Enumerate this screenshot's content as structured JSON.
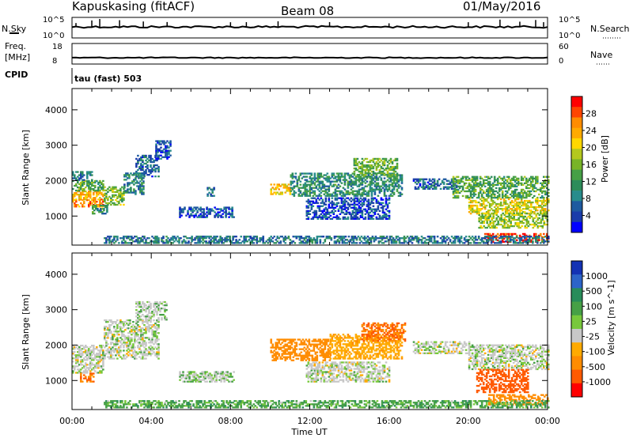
{
  "header": {
    "station": "Kapuskasing (fitACF)",
    "beam": "Beam 08",
    "date": "01/May/2016"
  },
  "strip_nsky": {
    "left_label": "N.Sky",
    "left_ticks": [
      "10^5",
      "10^0"
    ],
    "right_label": "N.Search",
    "right_ticks": [
      "10^5",
      "10^0"
    ]
  },
  "strip_freq": {
    "left_label_top": "Freq.",
    "left_label_unit": "[MHz]",
    "left_ticks": [
      "18",
      "8"
    ],
    "right_label": "Nave",
    "right_ticks": [
      "60",
      "0"
    ]
  },
  "cpid": {
    "label": "CPID",
    "text": "tau (fast) 503"
  },
  "chart_data": [
    {
      "type": "heatmap",
      "name": "power-panel",
      "quantity": "Power",
      "ylabel": "Slant Range [km]",
      "colorbar_label": "Power [dB]",
      "colorbar_ticks": [
        "28",
        "24",
        "20",
        "16",
        "12",
        "8",
        "4"
      ],
      "colorbar_colors": [
        "#ff0000",
        "#ff4500",
        "#ff8c00",
        "#ffaa00",
        "#ffd700",
        "#b4c81e",
        "#78b428",
        "#46a046",
        "#2d8c5a",
        "#288c8c",
        "#1e5aa0",
        "#1a3caa",
        "#0000ff"
      ],
      "ylim": [
        180,
        4600
      ],
      "y_ticks": [
        1000,
        2000,
        3000,
        4000
      ],
      "x_ticks": [
        "00:00",
        "04:00",
        "08:00",
        "12:00",
        "16:00",
        "20:00",
        "00:00"
      ],
      "xlim_hours": [
        0,
        24
      ],
      "regions": [
        {
          "t": [
            0.0,
            1.6
          ],
          "r": [
            1250,
            1450
          ],
          "v": 25
        },
        {
          "t": [
            0.0,
            1.6
          ],
          "r": [
            1450,
            1700
          ],
          "v": 22
        },
        {
          "t": [
            0.0,
            1.6
          ],
          "r": [
            1700,
            2000
          ],
          "v": 14
        },
        {
          "t": [
            0.0,
            1.0
          ],
          "r": [
            2000,
            2250
          ],
          "v": 9
        },
        {
          "t": [
            1.6,
            2.6
          ],
          "r": [
            1300,
            1800
          ],
          "v": 16
        },
        {
          "t": [
            1.0,
            1.8
          ],
          "r": [
            1050,
            1300
          ],
          "v": 12
        },
        {
          "t": [
            2.6,
            3.6
          ],
          "r": [
            1600,
            2200
          ],
          "v": 10
        },
        {
          "t": [
            3.2,
            4.4
          ],
          "r": [
            2100,
            2700
          ],
          "v": 8
        },
        {
          "t": [
            4.2,
            5.0
          ],
          "r": [
            2600,
            3100
          ],
          "v": 6
        },
        {
          "t": [
            5.4,
            8.2
          ],
          "r": [
            950,
            1250
          ],
          "v": 6
        },
        {
          "t": [
            6.8,
            7.2
          ],
          "r": [
            1550,
            1800
          ],
          "v": 8
        },
        {
          "t": [
            10.0,
            11.0
          ],
          "r": [
            1600,
            1900
          ],
          "v": 21
        },
        {
          "t": [
            11.0,
            16.6
          ],
          "r": [
            1550,
            2200
          ],
          "v": 11
        },
        {
          "t": [
            14.2,
            16.4
          ],
          "r": [
            2100,
            2600
          ],
          "v": 15
        },
        {
          "t": [
            11.8,
            16.0
          ],
          "r": [
            900,
            1500
          ],
          "v": 6
        },
        {
          "t": [
            17.2,
            19.4
          ],
          "r": [
            1750,
            2050
          ],
          "v": 8
        },
        {
          "t": [
            19.2,
            24.0
          ],
          "r": [
            1500,
            2100
          ],
          "v": 14
        },
        {
          "t": [
            20.0,
            24.0
          ],
          "r": [
            1050,
            1500
          ],
          "v": 19
        },
        {
          "t": [
            20.5,
            24.0
          ],
          "r": [
            650,
            1100
          ],
          "v": 17
        },
        {
          "t": [
            20.8,
            24.0
          ],
          "r": [
            250,
            500
          ],
          "v": 28
        },
        {
          "t": [
            1.6,
            24.0
          ],
          "r": [
            220,
            430
          ],
          "v": 9
        }
      ]
    },
    {
      "type": "heatmap",
      "name": "velocity-panel",
      "quantity": "Velocity",
      "ylabel": "Slant Range [km]",
      "colorbar_label": "Velocity [m s^-1]",
      "colorbar_ticks": [
        "1000",
        "500",
        "100",
        "25",
        "-25",
        "-100",
        "-500",
        "-1000"
      ],
      "colorbar_colors": [
        "#1432b4",
        "#2d64c8",
        "#288c5a",
        "#46a046",
        "#78c83c",
        "#c8c8c8",
        "#ffaa00",
        "#ff8c00",
        "#ff5a00",
        "#ff0000"
      ],
      "ylim": [
        180,
        4600
      ],
      "y_ticks": [
        1000,
        2000,
        3000,
        4000
      ],
      "x_ticks": [
        "00:00",
        "04:00",
        "08:00",
        "12:00",
        "16:00",
        "20:00",
        "00:00"
      ],
      "xlabel": "Time UT",
      "xlim_hours": [
        0,
        24
      ],
      "regions": [
        {
          "t": [
            0.0,
            1.6
          ],
          "r": [
            1200,
            2000
          ],
          "v": 0
        },
        {
          "t": [
            0.4,
            1.1
          ],
          "r": [
            950,
            1200
          ],
          "v": -300
        },
        {
          "t": [
            1.6,
            4.4
          ],
          "r": [
            1600,
            2700
          ],
          "v": 0
        },
        {
          "t": [
            3.2,
            4.8
          ],
          "r": [
            2700,
            3200
          ],
          "v": 5
        },
        {
          "t": [
            5.4,
            8.2
          ],
          "r": [
            950,
            1250
          ],
          "v": 10
        },
        {
          "t": [
            10.0,
            13.0
          ],
          "r": [
            1550,
            2150
          ],
          "v": -150
        },
        {
          "t": [
            13.0,
            16.6
          ],
          "r": [
            1600,
            2300
          ],
          "v": -80
        },
        {
          "t": [
            14.6,
            16.8
          ],
          "r": [
            2100,
            2600
          ],
          "v": -300
        },
        {
          "t": [
            11.8,
            16.0
          ],
          "r": [
            950,
            1500
          ],
          "v": 0
        },
        {
          "t": [
            17.2,
            20.0
          ],
          "r": [
            1750,
            2100
          ],
          "v": 0
        },
        {
          "t": [
            20.0,
            24.0
          ],
          "r": [
            1300,
            2000
          ],
          "v": 0
        },
        {
          "t": [
            20.4,
            23.0
          ],
          "r": [
            650,
            1300
          ],
          "v": -400
        },
        {
          "t": [
            21.0,
            24.0
          ],
          "r": [
            300,
            600
          ],
          "v": -150
        },
        {
          "t": [
            1.6,
            24.0
          ],
          "r": [
            220,
            420
          ],
          "v": 40
        }
      ]
    }
  ]
}
